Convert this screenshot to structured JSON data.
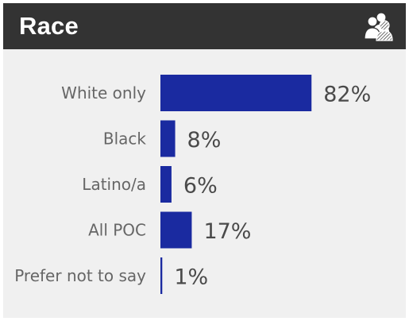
{
  "header": {
    "title": "Race",
    "icon": "people-group-icon"
  },
  "colors": {
    "header_bg": "#333333",
    "card_bg": "#f0f0f0",
    "bar": "#1a2aa0"
  },
  "chart_data": {
    "type": "bar",
    "orientation": "horizontal",
    "title": "Race",
    "categories": [
      "White only",
      "Black",
      "Latino/a",
      "All POC",
      "Prefer not to say"
    ],
    "values": [
      82,
      8,
      6,
      17,
      1
    ],
    "value_labels": [
      "82%",
      "8%",
      "6%",
      "17%",
      "1%"
    ],
    "unit": "%",
    "xlim": [
      0,
      100
    ],
    "grid": false,
    "legend": "none"
  }
}
